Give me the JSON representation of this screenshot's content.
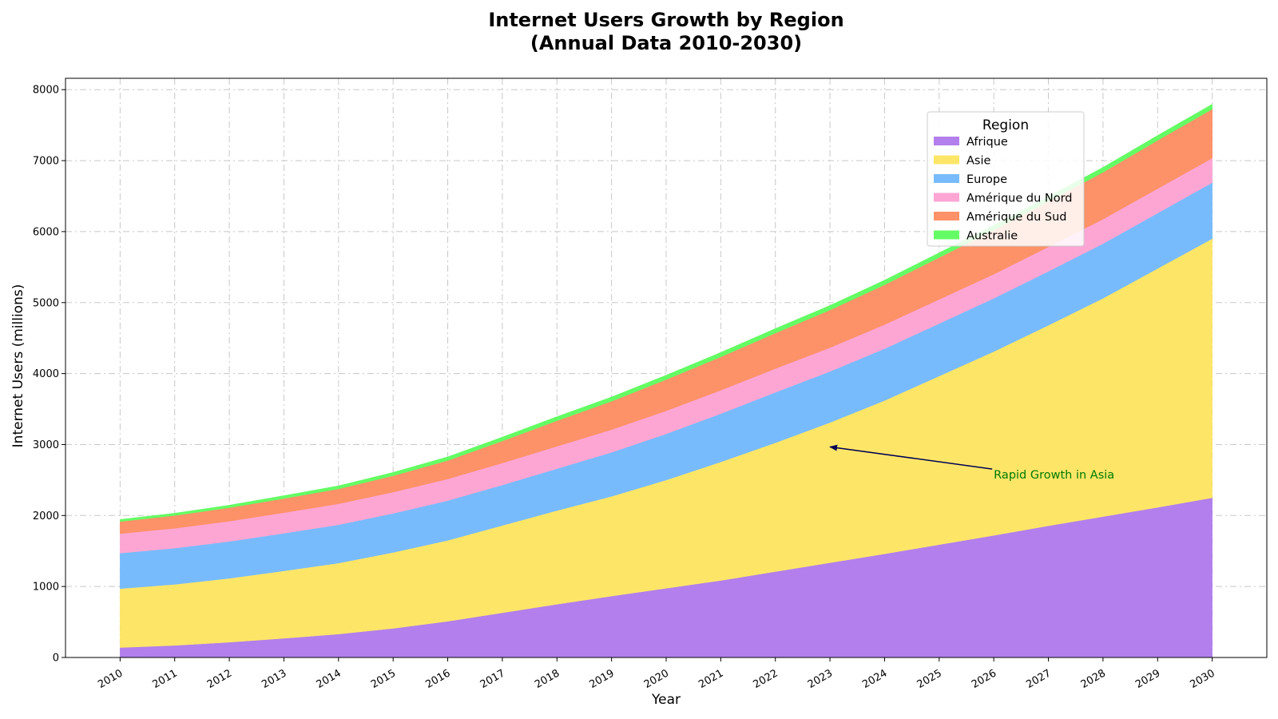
{
  "chart_data": {
    "type": "area",
    "stacked": true,
    "title_line1": "Internet Users Growth by Region",
    "title_line2": "(Annual Data 2010-2030)",
    "xlabel": "Year",
    "ylabel": "Internet Users (millions)",
    "x": [
      2010,
      2011,
      2012,
      2013,
      2014,
      2015,
      2016,
      2017,
      2018,
      2019,
      2020,
      2021,
      2022,
      2023,
      2024,
      2025,
      2026,
      2027,
      2028,
      2029,
      2030
    ],
    "ylim": [
      0,
      8160
    ],
    "yticks": [
      0,
      1000,
      2000,
      3000,
      4000,
      5000,
      6000,
      7000,
      8000
    ],
    "grid": true,
    "legend": {
      "title": "Region",
      "placement": "upper-right"
    },
    "series": [
      {
        "name": "Afrique",
        "color": "#b27fec",
        "values": [
          140,
          170,
          215,
          270,
          330,
          410,
          510,
          630,
          750,
          865,
          975,
          1085,
          1210,
          1335,
          1460,
          1590,
          1720,
          1855,
          1985,
          2115,
          2250
        ]
      },
      {
        "name": "Asie",
        "color": "#fde667",
        "values": [
          830,
          860,
          900,
          950,
          1000,
          1070,
          1140,
          1230,
          1320,
          1405,
          1525,
          1670,
          1815,
          1975,
          2160,
          2375,
          2590,
          2825,
          3075,
          3365,
          3650
        ]
      },
      {
        "name": "Europe",
        "color": "#78bbfc",
        "values": [
          500,
          510,
          520,
          530,
          540,
          550,
          560,
          570,
          590,
          620,
          650,
          680,
          710,
          720,
          730,
          740,
          750,
          760,
          770,
          780,
          790
        ]
      },
      {
        "name": "Amérique du Nord",
        "color": "#fda6d4",
        "values": [
          275,
          280,
          285,
          290,
          295,
          300,
          305,
          310,
          315,
          320,
          325,
          330,
          335,
          335,
          340,
          340,
          340,
          345,
          345,
          345,
          345
        ]
      },
      {
        "name": "Amérique du Sud",
        "color": "#fd9168",
        "values": [
          170,
          180,
          190,
          200,
          210,
          230,
          260,
          310,
          360,
          400,
          440,
          470,
          500,
          530,
          560,
          590,
          620,
          640,
          660,
          680,
          690
        ]
      },
      {
        "name": "Australie",
        "color": "#64fc64",
        "values": [
          30,
          33,
          36,
          40,
          44,
          48,
          52,
          55,
          58,
          60,
          62,
          63,
          64,
          65,
          66,
          67,
          68,
          69,
          70,
          70,
          70
        ]
      }
    ],
    "annotation": {
      "text": "Rapid Growth in Asia",
      "point_x": 2023,
      "point_y": 2900,
      "text_x": 2026,
      "text_y": 2520
    }
  }
}
